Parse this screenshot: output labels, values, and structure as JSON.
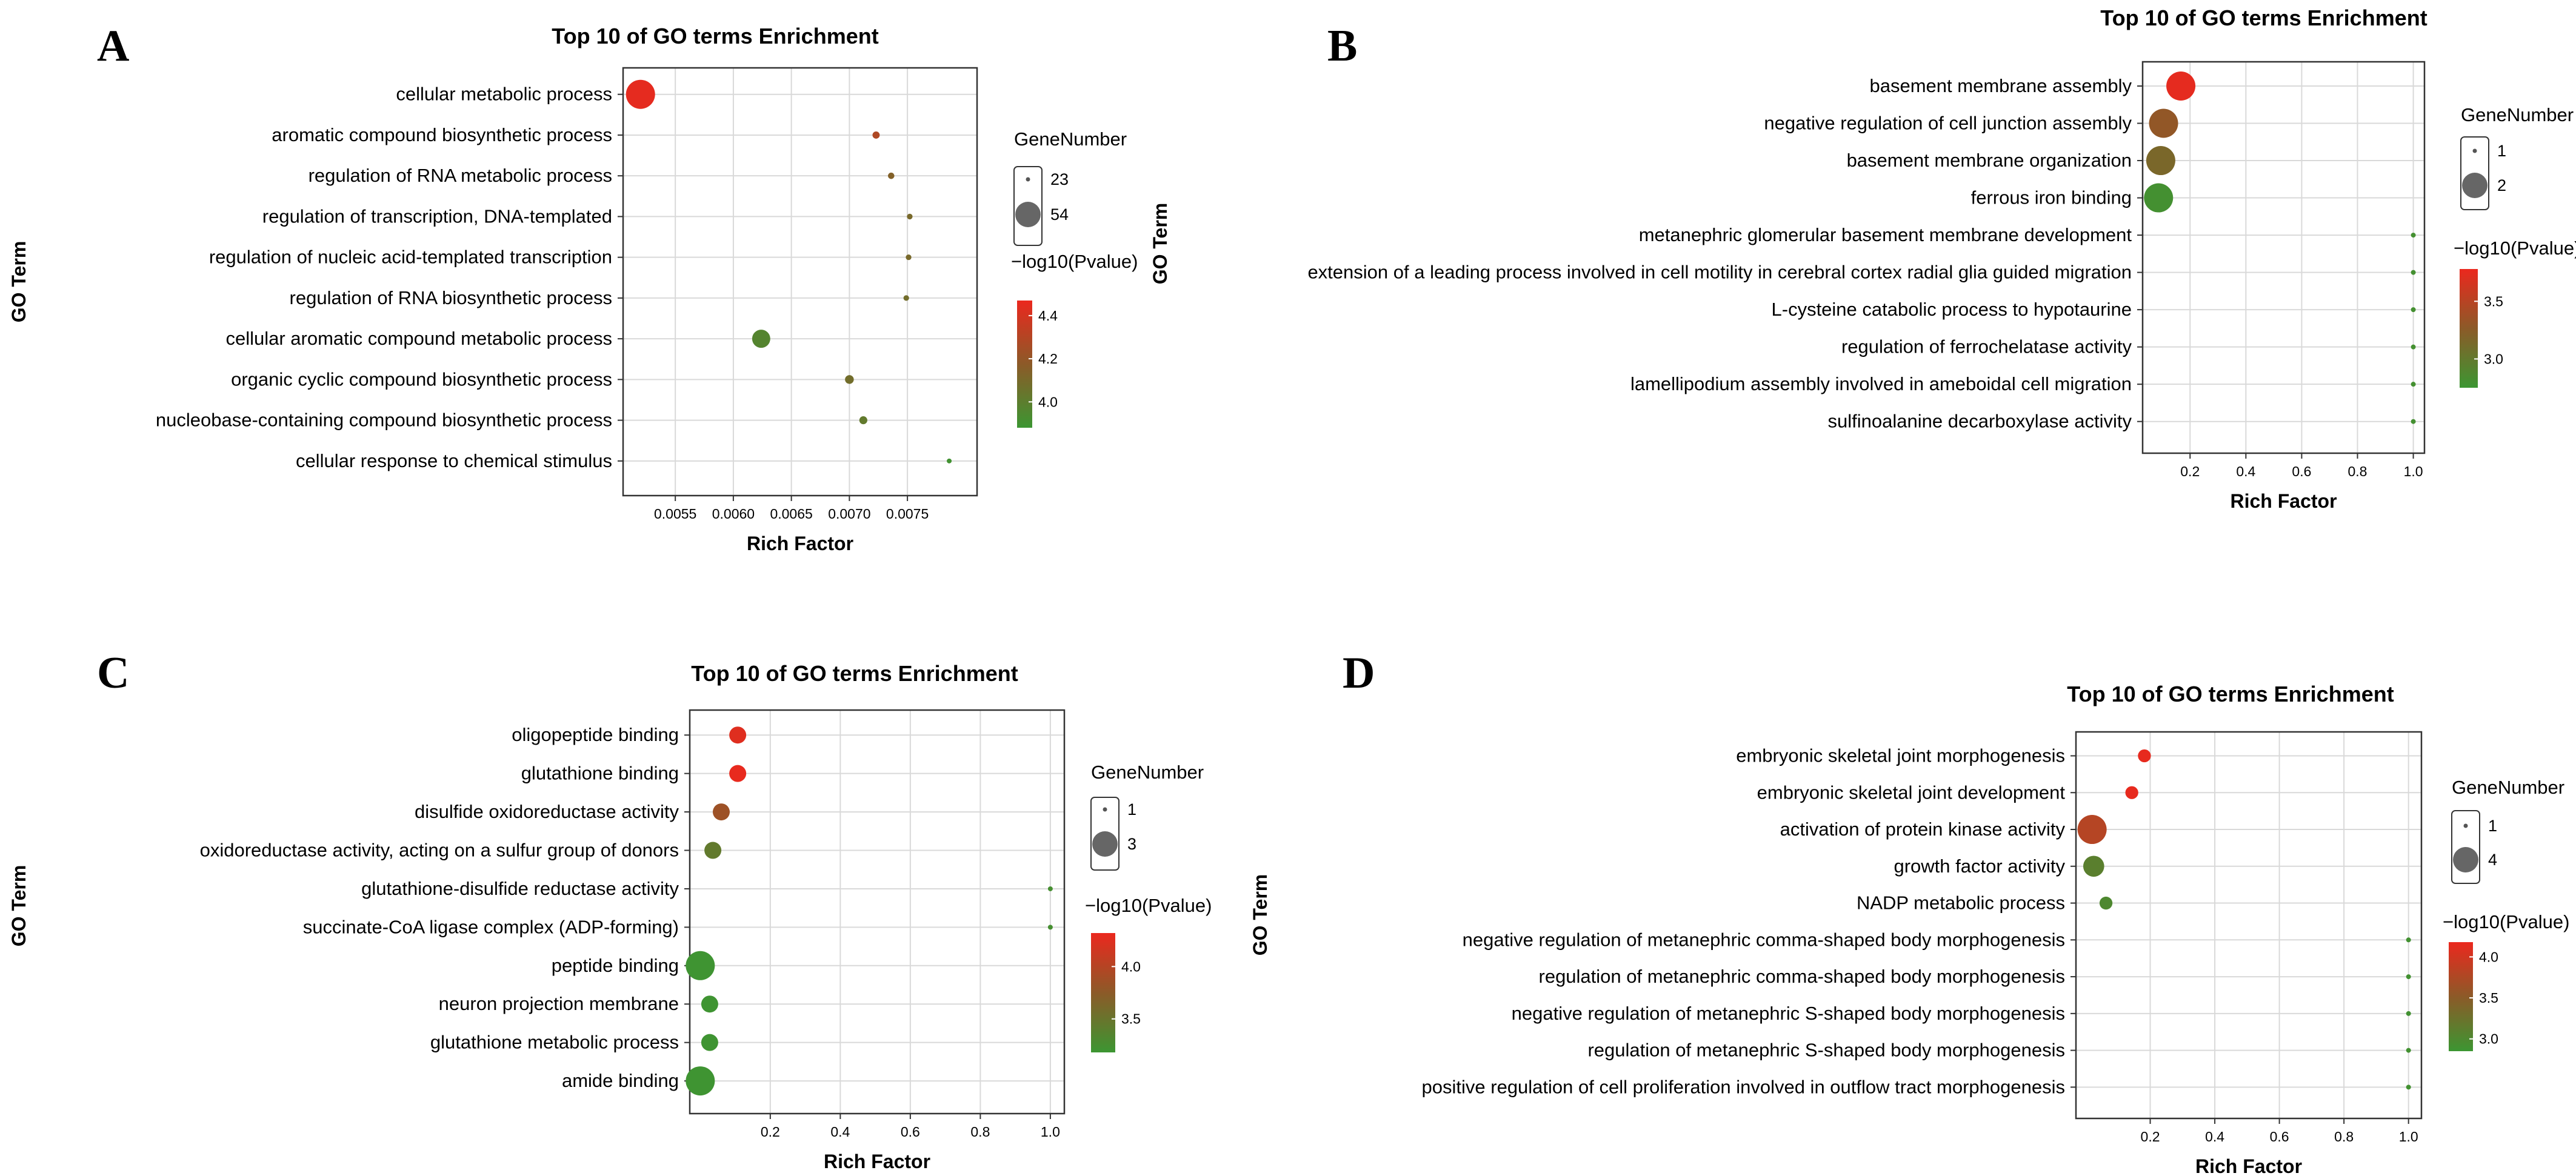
{
  "chart_data": [
    {
      "panel": "A",
      "type": "scatter",
      "title": "Top 10 of GO terms Enrichment",
      "xlabel": "Rich Factor",
      "ylabel": "GO Term",
      "xlim": [
        0.00505,
        0.0081
      ],
      "xticks": [
        0.0055,
        0.006,
        0.0065,
        0.007,
        0.0075
      ],
      "xtick_labels": [
        "0.0055",
        "0.0060",
        "0.0065",
        "0.0070",
        "0.0075"
      ],
      "terms": [
        "cellular metabolic process",
        "aromatic compound biosynthetic process",
        "regulation of RNA metabolic process",
        "regulation of transcription, DNA-templated",
        "regulation of nucleic acid-templated transcription",
        "regulation of RNA biosynthetic process",
        "cellular aromatic compound metabolic process",
        "organic cyclic compound biosynthetic process",
        "nucleobase-containing compound biosynthetic process",
        "cellular response to chemical stimulus"
      ],
      "rich_factor": [
        0.0052,
        0.00723,
        0.00736,
        0.00752,
        0.00751,
        0.00749,
        0.00624,
        0.007,
        0.00712,
        0.00786
      ],
      "gene_number": [
        54,
        26,
        25,
        24,
        24,
        24,
        40,
        28,
        27,
        23
      ],
      "neg_log10_pvalue": [
        4.45,
        4.28,
        4.14,
        4.1,
        4.1,
        4.08,
        3.97,
        4.08,
        4.02,
        3.9
      ],
      "size_legend": {
        "title": "GeneNumber",
        "values": [
          23,
          54
        ],
        "labels": [
          "23",
          "54"
        ]
      },
      "color_legend": {
        "title": "−log10(Pvalue)",
        "min": 3.88,
        "max": 4.47,
        "ticks": [
          4.0,
          4.2,
          4.4
        ],
        "tick_labels": [
          "4.0",
          "4.2",
          "4.4"
        ]
      }
    },
    {
      "panel": "B",
      "type": "scatter",
      "title": "Top 10 of GO terms Enrichment",
      "xlabel": "Rich Factor",
      "ylabel": "GO Term",
      "xlim": [
        0.03,
        1.04
      ],
      "xticks": [
        0.2,
        0.4,
        0.6,
        0.8,
        1.0
      ],
      "xtick_labels": [
        "0.2",
        "0.4",
        "0.6",
        "0.8",
        "1.0"
      ],
      "terms": [
        "basement membrane assembly",
        "negative regulation of cell junction assembly",
        "basement membrane organization",
        "ferrous iron binding",
        "metanephric glomerular basement membrane development",
        "extension of a leading process involved in cell motility in cerebral cortex radial glia guided migration",
        "L-cysteine catabolic process to hypotaurine",
        "regulation of ferrochelatase activity",
        "lamellipodium assembly involved in ameboidal cell migration",
        "sulfinoalanine decarboxylase activity"
      ],
      "rich_factor": [
        0.167,
        0.105,
        0.095,
        0.087,
        1.0,
        1.0,
        1.0,
        1.0,
        1.0,
        1.0
      ],
      "gene_number": [
        2,
        2,
        2,
        2,
        1,
        1,
        1,
        1,
        1,
        1
      ],
      "neg_log10_pvalue": [
        3.75,
        3.3,
        3.15,
        2.8,
        2.8,
        2.8,
        2.8,
        2.8,
        2.8,
        2.8
      ],
      "size_legend": {
        "title": "GeneNumber",
        "values": [
          1,
          2
        ],
        "labels": [
          "1",
          "2"
        ]
      },
      "color_legend": {
        "title": "−log10(Pvalue)",
        "min": 2.75,
        "max": 3.78,
        "ticks": [
          3.0,
          3.5
        ],
        "tick_labels": [
          "3.0",
          "3.5"
        ]
      }
    },
    {
      "panel": "C",
      "type": "scatter",
      "title": "Top 10 of GO terms Enrichment",
      "xlabel": "Rich Factor",
      "ylabel": "GO Term",
      "xlim": [
        -0.03,
        1.04
      ],
      "xticks": [
        0.2,
        0.4,
        0.6,
        0.8,
        1.0
      ],
      "xtick_labels": [
        "0.2",
        "0.4",
        "0.6",
        "0.8",
        "1.0"
      ],
      "terms": [
        "oligopeptide binding",
        "glutathione binding",
        "disulfide oxidoreductase activity",
        "oxidoreductase activity, acting on a sulfur group of donors",
        "glutathione-disulfide reductase activity",
        "succinate-CoA ligase complex (ADP-forming)",
        "peptide binding",
        "neuron projection membrane",
        "glutathione metabolic process",
        "amide binding"
      ],
      "rich_factor": [
        0.107,
        0.107,
        0.06,
        0.036,
        1.0,
        1.0,
        0.0,
        0.027,
        0.027,
        0.0
      ],
      "gene_number": [
        2,
        2,
        2,
        2,
        1,
        1,
        3,
        2,
        2,
        3
      ],
      "neg_log10_pvalue": [
        4.25,
        4.3,
        3.85,
        3.45,
        3.25,
        3.25,
        3.2,
        3.2,
        3.2,
        3.2
      ],
      "size_legend": {
        "title": "GeneNumber",
        "values": [
          1,
          3
        ],
        "labels": [
          "1",
          "3"
        ]
      },
      "color_legend": {
        "title": "−log10(Pvalue)",
        "min": 3.18,
        "max": 4.32,
        "ticks": [
          3.5,
          4.0
        ],
        "tick_labels": [
          "3.5",
          "4.0"
        ]
      }
    },
    {
      "panel": "D",
      "type": "scatter",
      "title": "Top 10 of GO terms Enrichment",
      "xlabel": "Rich Factor",
      "ylabel": "GO Term",
      "xlim": [
        -0.03,
        1.04
      ],
      "xticks": [
        0.2,
        0.4,
        0.6,
        0.8,
        1.0
      ],
      "xtick_labels": [
        "0.2",
        "0.4",
        "0.6",
        "0.8",
        "1.0"
      ],
      "terms": [
        "embryonic skeletal joint morphogenesis",
        "embryonic skeletal joint development",
        "activation of protein kinase activity",
        "growth factor activity",
        "NADP metabolic process",
        "negative regulation of metanephric comma-shaped body morphogenesis",
        "regulation of metanephric comma-shaped body morphogenesis",
        "negative regulation of metanephric S-shaped body morphogenesis",
        "regulation of metanephric S-shaped body morphogenesis",
        "positive regulation of cell proliferation involved in outflow tract morphogenesis"
      ],
      "rich_factor": [
        0.182,
        0.143,
        0.02,
        0.025,
        0.063,
        1.0,
        1.0,
        1.0,
        1.0,
        1.0
      ],
      "gene_number": [
        2,
        2,
        4,
        3,
        2,
        1,
        1,
        1,
        1,
        1
      ],
      "neg_log10_pvalue": [
        4.15,
        4.15,
        3.8,
        3.1,
        3.0,
        2.9,
        2.9,
        2.9,
        2.9,
        2.9
      ],
      "size_legend": {
        "title": "GeneNumber",
        "values": [
          1,
          4
        ],
        "labels": [
          "1",
          "4"
        ]
      },
      "color_legend": {
        "title": "−log10(Pvalue)",
        "min": 2.85,
        "max": 4.18,
        "ticks": [
          3.0,
          3.5,
          4.0
        ],
        "tick_labels": [
          "3.0",
          "3.5",
          "4.0"
        ]
      }
    }
  ]
}
